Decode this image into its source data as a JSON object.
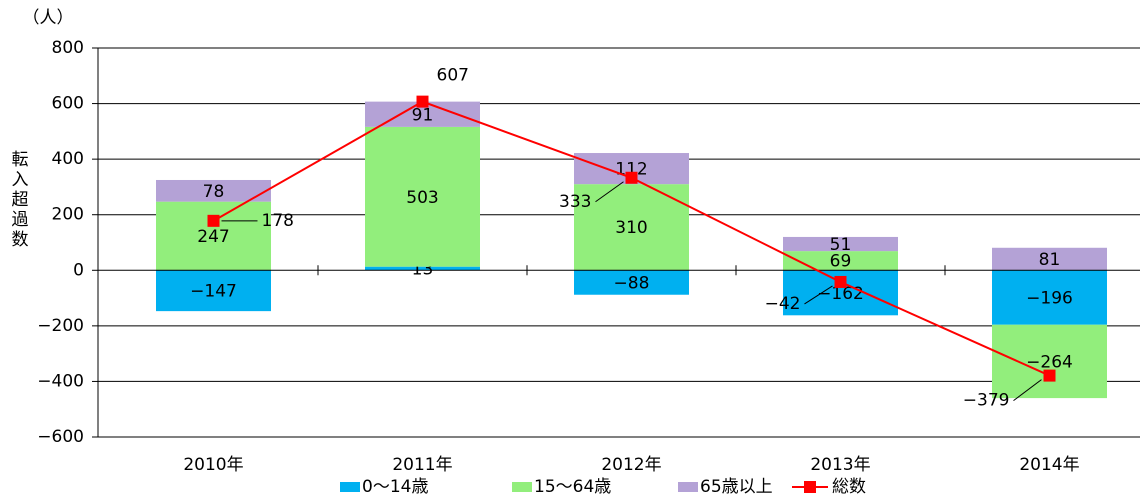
{
  "chart_data": {
    "type": "stacked-bar-line",
    "y_unit": "（人）",
    "y_label": "転入超過数",
    "categories": [
      "2010年",
      "2011年",
      "2012年",
      "2013年",
      "2014年"
    ],
    "series": [
      {
        "name": "0～14歳",
        "color": "#00b0f0",
        "type": "bar",
        "values": [
          -147,
          13,
          -88,
          -162,
          -196
        ],
        "value_labels": [
          "−147",
          "13",
          "−88",
          "−162",
          "−196"
        ]
      },
      {
        "name": "15～64歳",
        "color": "#92ee7c",
        "type": "bar",
        "values": [
          247,
          503,
          310,
          69,
          -264
        ],
        "value_labels": [
          "247",
          "503",
          "310",
          "69",
          "−264"
        ]
      },
      {
        "name": "65歳以上",
        "color": "#b4a2d6",
        "type": "bar",
        "values": [
          78,
          91,
          112,
          51,
          81
        ]
      },
      {
        "name": "総数",
        "color": "#ff0000",
        "type": "line",
        "values": [
          178,
          607,
          333,
          -42,
          -379
        ],
        "value_labels": [
          "178",
          "607",
          "333",
          "−42",
          "−379"
        ]
      }
    ],
    "ylim": [
      -600,
      800
    ],
    "yticks": [
      {
        "value": -600,
        "label": "−600"
      },
      {
        "value": -400,
        "label": "−400"
      },
      {
        "value": -200,
        "label": "−200"
      },
      0,
      200,
      400,
      600,
      800
    ],
    "grid": true,
    "legend": "bottom"
  }
}
